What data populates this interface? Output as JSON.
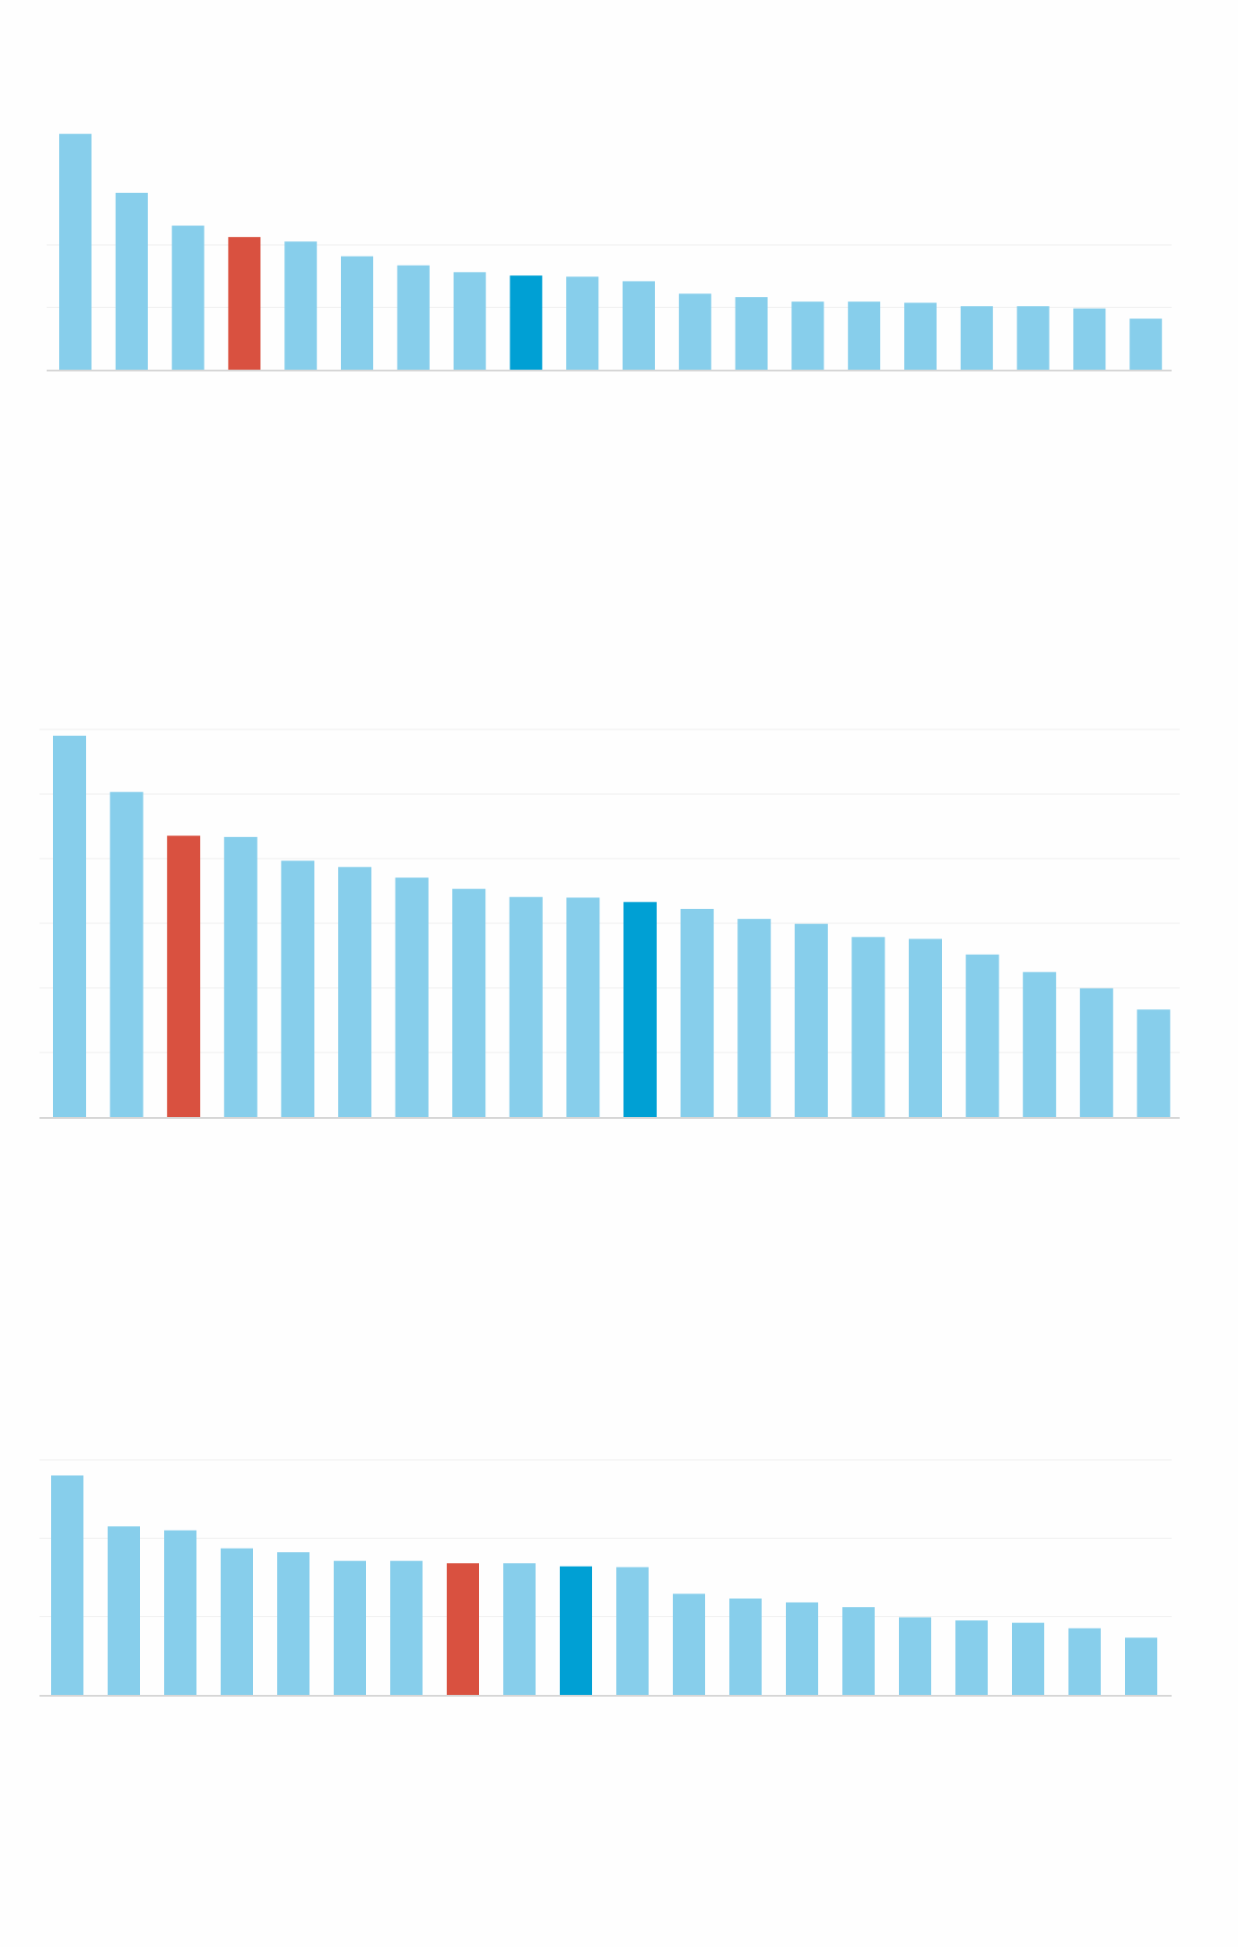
{
  "colors": {
    "default_bar": "#87ceeb",
    "highlight_red": "#d95140",
    "highlight_blue": "#00a0d4",
    "gridline": "#eeeeee",
    "axis": "#d6d6d6"
  },
  "chart_data": [
    {
      "type": "bar",
      "title": "",
      "xlabel": "",
      "ylabel": "",
      "grid": true,
      "ylim": [
        0,
        2.2
      ],
      "values": [
        2.08,
        1.56,
        1.27,
        1.17,
        1.13,
        1.0,
        0.92,
        0.86,
        0.83,
        0.82,
        0.78,
        0.67,
        0.64,
        0.6,
        0.6,
        0.59,
        0.56,
        0.56,
        0.54,
        0.45
      ],
      "highlight": [
        {
          "index": 3,
          "color": "highlight_red"
        },
        {
          "index": 8,
          "color": "highlight_blue"
        }
      ]
    },
    {
      "type": "bar",
      "title": "",
      "xlabel": "",
      "ylabel": "",
      "grid": true,
      "ylim": [
        0,
        6.2
      ],
      "values": [
        6.1,
        5.2,
        4.5,
        4.48,
        4.1,
        4.0,
        3.83,
        3.65,
        3.52,
        3.51,
        3.44,
        3.33,
        3.17,
        3.09,
        2.88,
        2.85,
        2.6,
        2.32,
        2.06,
        1.72
      ],
      "highlight": [
        {
          "index": 2,
          "color": "highlight_red"
        },
        {
          "index": 10,
          "color": "highlight_blue"
        }
      ]
    },
    {
      "type": "bar",
      "title": "",
      "xlabel": "",
      "ylabel": "",
      "grid": true,
      "ylim": [
        0,
        3.0
      ],
      "values": [
        2.8,
        2.15,
        2.1,
        1.87,
        1.82,
        1.71,
        1.71,
        1.68,
        1.68,
        1.64,
        1.63,
        1.29,
        1.23,
        1.18,
        1.12,
        0.99,
        0.95,
        0.92,
        0.85,
        0.73
      ],
      "highlight": [
        {
          "index": 7,
          "color": "highlight_red"
        },
        {
          "index": 9,
          "color": "highlight_blue"
        }
      ]
    }
  ]
}
